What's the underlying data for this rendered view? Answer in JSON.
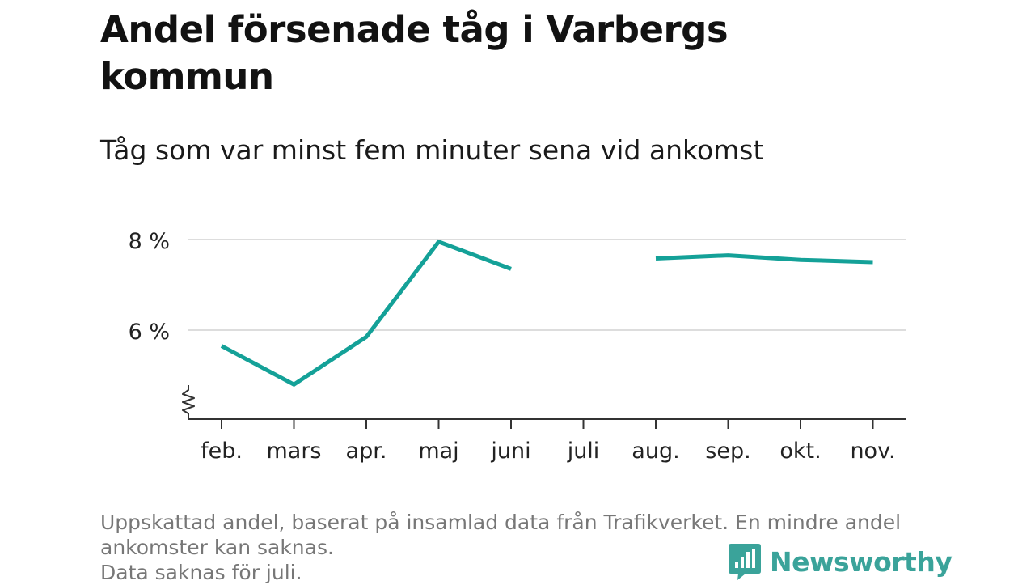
{
  "title": "Andel försenade tåg i Varbergs kommun",
  "subtitle": "Tåg som var minst fem minuter sena vid ankomst",
  "footer": {
    "line1": "Uppskattad andel, baserat på insamlad data från Trafikverket. En mindre andel",
    "line2": "ankomster kan saknas.",
    "line3": "Data saknas för juli."
  },
  "brand": {
    "name": "Newsworthy",
    "icon": "newsworthy-logo-icon",
    "color": "#3aa39a"
  },
  "colors": {
    "line": "#14a198",
    "grid": "#dddddd",
    "axis": "#333333"
  },
  "chart_data": {
    "type": "line",
    "categories": [
      "feb.",
      "mars",
      "apr.",
      "maj",
      "juni",
      "juli",
      "aug.",
      "sep.",
      "okt.",
      "nov."
    ],
    "series": [
      {
        "values": [
          5.65,
          4.8,
          5.85,
          7.95,
          7.35,
          null,
          7.58,
          7.65,
          7.55,
          7.5
        ]
      }
    ],
    "yticks": [
      6,
      8
    ],
    "ytick_labels": [
      "6 %",
      "8 %"
    ],
    "ylim": [
      4.0,
      8.0
    ],
    "axis_break": true,
    "grid": true
  }
}
